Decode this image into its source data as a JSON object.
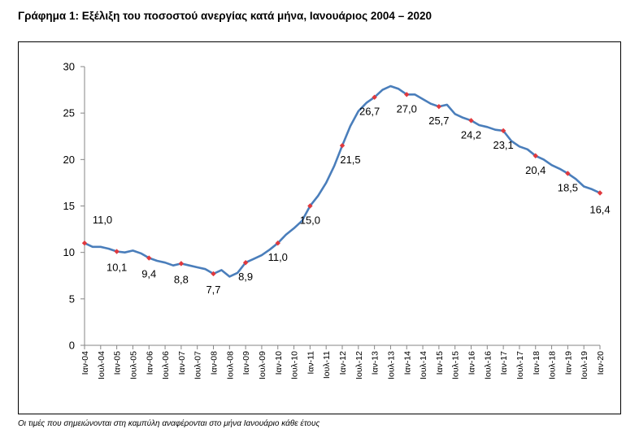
{
  "title": "Γράφημα 1: Εξέλιξη του ποσοστού ανεργίας κατά μήνα, Ιανουάριος 2004 – 2020",
  "note": "Οι τιμές που σημειώνονται στη καμπύλη αναφέρονται στο μήνα Ιανουάριο κάθε έτους",
  "colors": {
    "line": "#4a7ebb",
    "marker": "#e0393e",
    "axis": "#868686"
  },
  "chart_data": {
    "type": "line",
    "title": "Γράφημα 1: Εξέλιξη του ποσοστού ανεργίας κατά μήνα, Ιανουάριος 2004 – 2020",
    "xlabel": "",
    "ylabel": "",
    "ylim": [
      0,
      30
    ],
    "yticks": [
      0,
      5,
      10,
      15,
      20,
      25,
      30
    ],
    "grid": false,
    "legend": "none",
    "x_tick_labels": [
      "Ιαν-04",
      "Ιουλ-04",
      "Ιαν-05",
      "Ιουλ-05",
      "Ιαν-06",
      "Ιουλ-06",
      "Ιαν-07",
      "Ιουλ-07",
      "Ιαν-08",
      "Ιουλ-08",
      "Ιαν-09",
      "Ιουλ-09",
      "Ιαν-10",
      "Ιουλ-10",
      "Ιαν-11",
      "Ιουλ-11",
      "Ιαν-12",
      "Ιουλ-12",
      "Ιαν-13",
      "Ιουλ-13",
      "Ιαν-14",
      "Ιουλ-14",
      "Ιαν-15",
      "Ιουλ-15",
      "Ιαν-16",
      "Ιουλ-16",
      "Ιαν-17",
      "Ιουλ-17",
      "Ιαν-18",
      "Ιουλ-18",
      "Ιαν-19",
      "Ιουλ-19",
      "Ιαν-20"
    ],
    "series": [
      {
        "x": [
          "2004-01",
          "2004-04",
          "2004-07",
          "2004-10",
          "2005-01",
          "2005-04",
          "2005-07",
          "2005-10",
          "2006-01",
          "2006-04",
          "2006-07",
          "2006-10",
          "2007-01",
          "2007-04",
          "2007-07",
          "2007-10",
          "2008-01",
          "2008-04",
          "2008-07",
          "2008-10",
          "2009-01",
          "2009-04",
          "2009-07",
          "2009-10",
          "2010-01",
          "2010-04",
          "2010-07",
          "2010-10",
          "2011-01",
          "2011-04",
          "2011-07",
          "2011-10",
          "2012-01",
          "2012-04",
          "2012-07",
          "2012-10",
          "2013-01",
          "2013-04",
          "2013-07",
          "2013-10",
          "2014-01",
          "2014-04",
          "2014-07",
          "2014-10",
          "2015-01",
          "2015-04",
          "2015-07",
          "2015-10",
          "2016-01",
          "2016-04",
          "2016-07",
          "2016-10",
          "2017-01",
          "2017-04",
          "2017-07",
          "2017-10",
          "2018-01",
          "2018-04",
          "2018-07",
          "2018-10",
          "2019-01",
          "2019-04",
          "2019-07",
          "2019-10",
          "2020-01"
        ],
        "values": [
          11.0,
          10.6,
          10.6,
          10.4,
          10.1,
          10.0,
          10.2,
          9.9,
          9.4,
          9.1,
          8.9,
          8.6,
          8.8,
          8.6,
          8.4,
          8.2,
          7.7,
          8.1,
          7.4,
          7.8,
          8.9,
          9.3,
          9.7,
          10.3,
          11.0,
          11.9,
          12.6,
          13.4,
          15.0,
          16.1,
          17.5,
          19.3,
          21.5,
          23.6,
          25.2,
          26.1,
          26.7,
          27.5,
          27.9,
          27.6,
          27.0,
          27.0,
          26.5,
          26.0,
          25.7,
          25.9,
          24.9,
          24.5,
          24.2,
          23.7,
          23.5,
          23.2,
          23.1,
          22.0,
          21.4,
          21.1,
          20.4,
          20.0,
          19.4,
          19.0,
          18.5,
          17.9,
          17.1,
          16.8,
          16.4
        ]
      }
    ],
    "january_markers": {
      "x": [
        "2004-01",
        "2005-01",
        "2006-01",
        "2007-01",
        "2008-01",
        "2009-01",
        "2010-01",
        "2011-01",
        "2012-01",
        "2013-01",
        "2014-01",
        "2015-01",
        "2016-01",
        "2017-01",
        "2018-01",
        "2019-01",
        "2020-01"
      ],
      "values": [
        11.0,
        10.1,
        9.4,
        8.8,
        7.7,
        8.9,
        11.0,
        15.0,
        21.5,
        26.7,
        27.0,
        25.7,
        24.2,
        23.1,
        20.4,
        18.5,
        16.4
      ],
      "labels": [
        "11,0",
        "10,1",
        "9,4",
        "8,8",
        "7,7",
        "8,9",
        "11,0",
        "15,0",
        "21,5",
        "26,7",
        "27,0",
        "25,7",
        "24,2",
        "23,1",
        "20,4",
        "18,5",
        "16,4"
      ]
    }
  }
}
